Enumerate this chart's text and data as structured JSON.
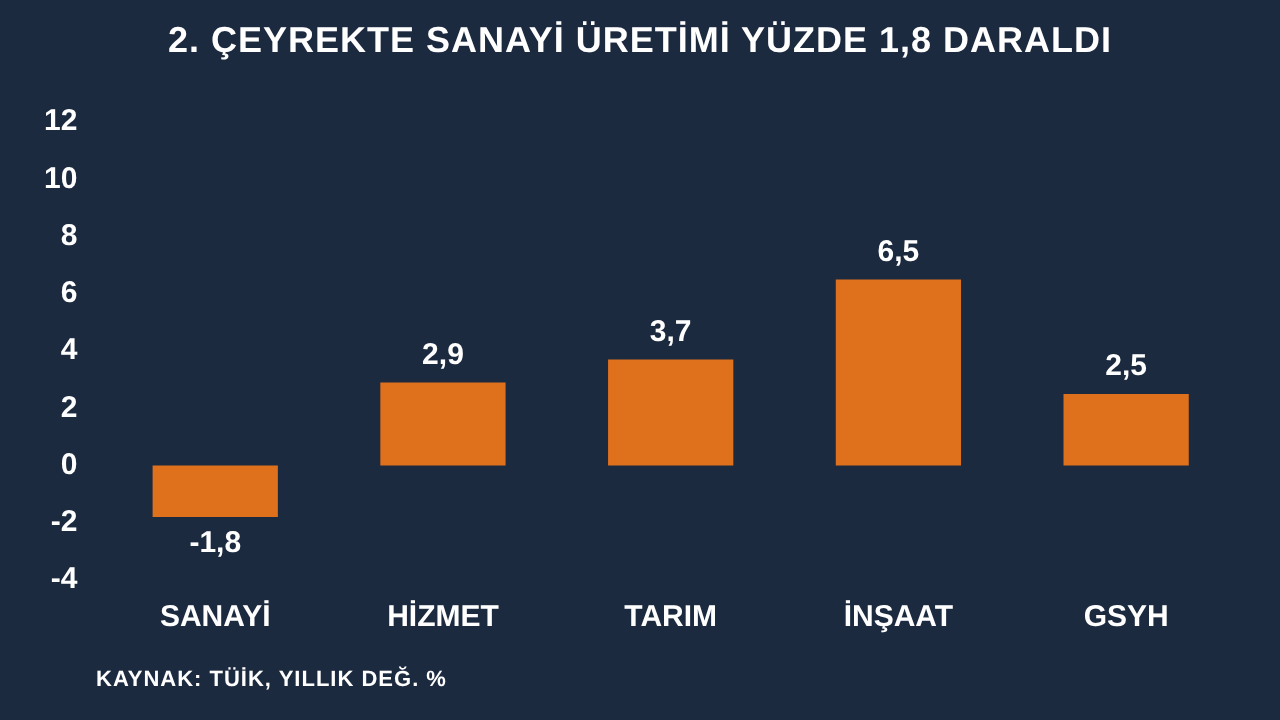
{
  "chart_data": {
    "type": "bar",
    "title": "2. ÇEYREKTE SANAYİ ÜRETİMİ YÜZDE 1,8 DARALDI",
    "categories": [
      "SANAYİ",
      "HİZMET",
      "TARIM",
      "İNŞAAT",
      "GSYH"
    ],
    "values": [
      -1.8,
      2.9,
      3.7,
      6.5,
      2.5
    ],
    "color": "#e0711c",
    "ylim": [
      -4,
      12
    ],
    "yticks": [
      -4,
      -2,
      0,
      2,
      4,
      6,
      8,
      10,
      12
    ],
    "grid": false,
    "value_labels": [
      "-1,8",
      "2,9",
      "3,7",
      "6,5",
      "2,5"
    ],
    "annotations": [
      "KAYNAK: TÜİK, YILLIK DEĞ. %"
    ]
  }
}
